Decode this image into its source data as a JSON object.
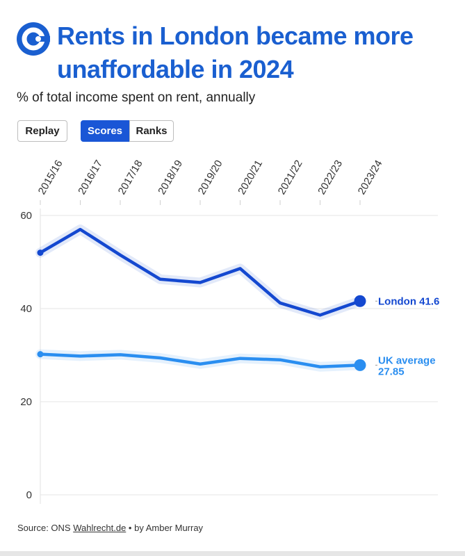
{
  "header": {
    "title": "Rents in London became more unaffordable in 2024",
    "subtitle": "% of total income spent on rent, annually"
  },
  "controls": {
    "replay_label": "Replay",
    "scores_label": "Scores",
    "ranks_label": "Ranks"
  },
  "colors": {
    "brand": "#1a5fd0",
    "london": "#1448d0",
    "uk": "#2a8ef0",
    "active_button": "#1a56d6"
  },
  "chart_data": {
    "type": "line",
    "categories": [
      "2015/16",
      "2016/17",
      "2017/18",
      "2018/19",
      "2019/20",
      "2020/21",
      "2021/22",
      "2022/23",
      "2023/24"
    ],
    "series": [
      {
        "name": "London",
        "values": [
          52,
          57,
          51.5,
          46.3,
          45.6,
          48.6,
          41.2,
          38.6,
          41.6
        ],
        "label": "London 41.6"
      },
      {
        "name": "UK average",
        "values": [
          30.2,
          29.8,
          30.1,
          29.4,
          28.1,
          29.3,
          29.0,
          27.5,
          27.85
        ],
        "label_line1": "UK average",
        "label_line2": "27.85"
      }
    ],
    "y_ticks": [
      "0",
      "20",
      "40",
      "60"
    ],
    "ylim": [
      0,
      60
    ],
    "grid": true,
    "legend": "end-of-line labels"
  },
  "footer": {
    "source_prefix": "Source: ONS ",
    "link_text": "Wahlrecht.de",
    "byline": " • by Amber Murray"
  }
}
